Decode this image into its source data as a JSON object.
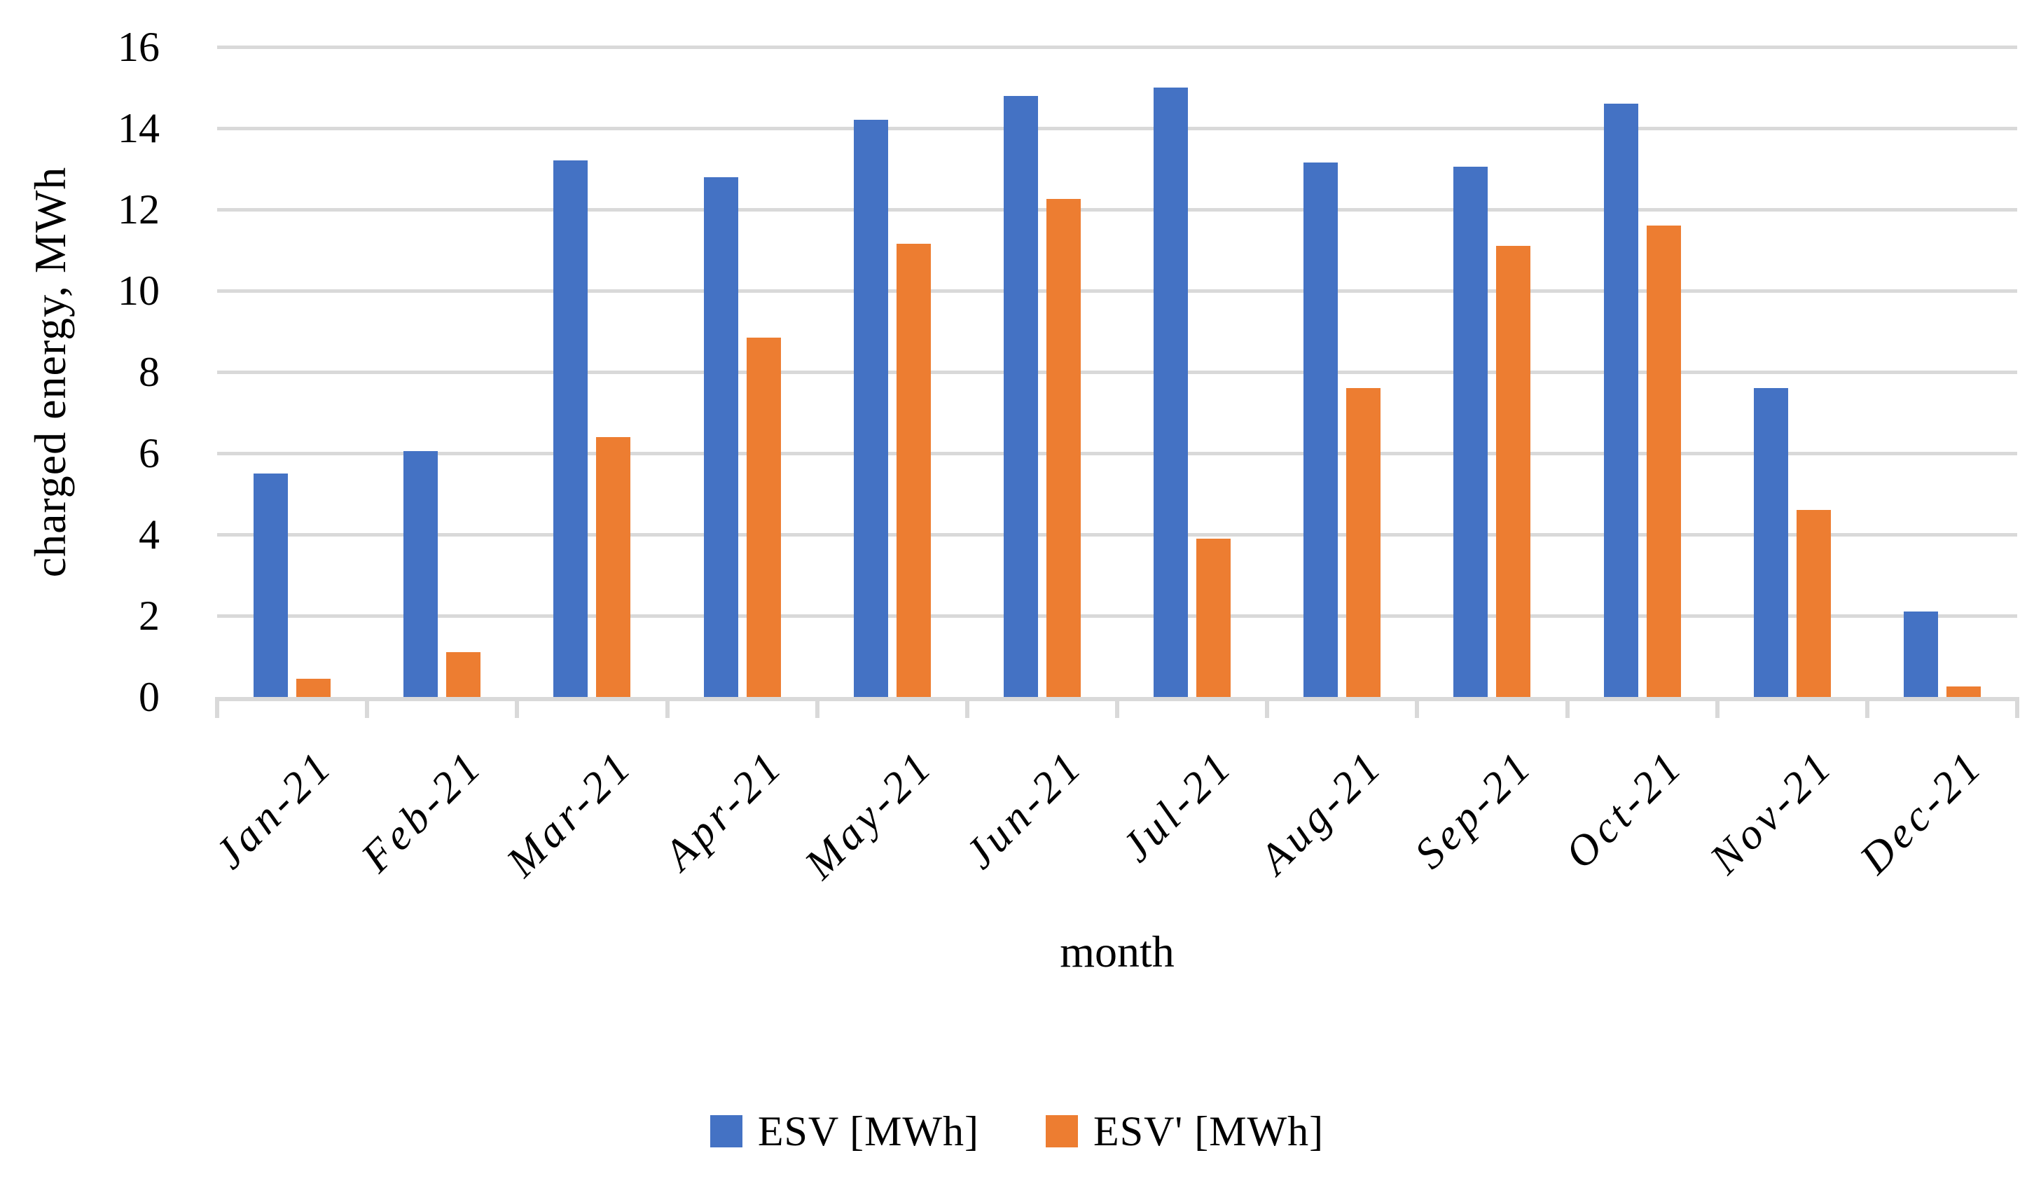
{
  "figure": {
    "background": "#FFFFFF"
  },
  "axes": {
    "grid_color": "#D9D9D9",
    "axis_color": "#D9D9D9",
    "text_color": "#000000"
  },
  "chart_data": {
    "type": "bar",
    "title": "",
    "xlabel": "month",
    "ylabel": "charged energy, MWh",
    "ylim": [
      0,
      16
    ],
    "ytick_step": 2,
    "yticks": [
      0,
      2,
      4,
      6,
      8,
      10,
      12,
      14,
      16
    ],
    "grid": true,
    "legend_position": "bottom",
    "categories": [
      "Jan-21",
      "Feb-21",
      "Mar-21",
      "Apr-21",
      "May-21",
      "Jun-21",
      "Jul-21",
      "Aug-21",
      "Sep-21",
      "Oct-21",
      "Nov-21",
      "Dec-21"
    ],
    "series": [
      {
        "name": "ESV [MWh]",
        "key": "esv",
        "color": "#4472C4",
        "values": [
          5.5,
          6.05,
          13.2,
          12.8,
          14.2,
          14.8,
          15.0,
          13.15,
          13.05,
          14.6,
          7.6,
          2.1
        ]
      },
      {
        "name": "ESV' [MWh]",
        "key": "esv-prime",
        "color": "#ED7D31",
        "values": [
          0.45,
          1.1,
          6.4,
          8.85,
          11.15,
          12.25,
          3.9,
          7.6,
          11.1,
          11.6,
          4.6,
          0.25
        ]
      }
    ]
  }
}
